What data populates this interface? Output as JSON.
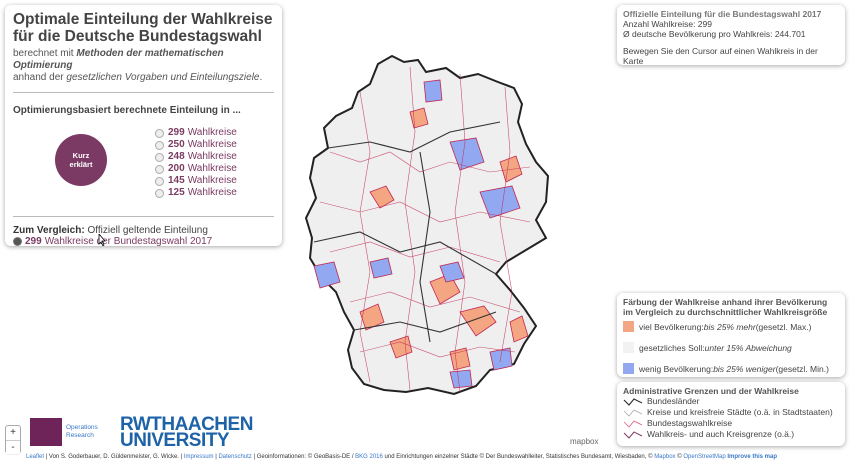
{
  "left_panel": {
    "title_line1": "Optimale Einteilung der Wahlkreise",
    "title_line2": "für die Deutsche Bundestagswahl",
    "subtitle_pre": "berechnet mit ",
    "subtitle_bold": "Methoden der mathematischen Optimierung",
    "subtitle_mid": "anhand der ",
    "subtitle_ital": "gesetzlichen Vorgaben und Einteilungsziele",
    "subtitle_end": ".",
    "section_heading": "Optimierungsbasiert berechnete Einteilung in ...",
    "circle_line1": "Kurz",
    "circle_line2": "erklärt",
    "options": [
      {
        "num": "299",
        "label": "Wahlkreise"
      },
      {
        "num": "250",
        "label": "Wahlkreise"
      },
      {
        "num": "248",
        "label": "Wahlkreise"
      },
      {
        "num": "200",
        "label": "Wahlkreise"
      },
      {
        "num": "145",
        "label": "Wahlkreise"
      },
      {
        "num": "125",
        "label": "Wahlkreise"
      }
    ],
    "compare_bold": "Zum Vergleich:",
    "compare_text": " Offiziell geltende Einteilung",
    "compare_num": "299",
    "compare_label": "Wahlkreise der Bundestagswahl 2017"
  },
  "info_box": {
    "heading": "Offizielle Einteilung für die Bundestagswahl 2017",
    "line1": "Anzahl Wahlkreise: 299",
    "line2": "Ø deutsche Bevölkerung pro Wahlkreis: 244.701",
    "hint": "Bewegen Sie den Cursor auf einen Wahlkreis in der Karte"
  },
  "legend": {
    "heading1": "Färbung der Wahlkreise anhand ihrer Bevölkerung",
    "heading2": "im Vergleich zu durchschnittlicher Wahlkreisgröße",
    "rows": [
      {
        "pre": "viel Bevölkerung: ",
        "ital": "bis 25% mehr",
        "post": " (gesetzl. Max.)",
        "color": "#f4a582"
      },
      {
        "pre": "gesetzliches Soll: ",
        "ital": "unter 15% Abweichung",
        "post": "",
        "color": "#f2f2f2"
      },
      {
        "pre": "wenig Bevölkerung: ",
        "ital": "bis 25% weniger",
        "post": " (gesetzl. Min.)",
        "color": "#92a8f0"
      }
    ]
  },
  "admin": {
    "heading": "Administrative Grenzen und der Wahlkreise",
    "rows": [
      "Bundesländer",
      "Kreise und kreisfreie Städte (o.ä. in Stadtstaaten)",
      "Bundestagswahlkreise",
      "Wahlkreis- und auch Kreisgrenze (o.ä.)"
    ]
  },
  "zoom": {
    "plus": "+",
    "minus": "-"
  },
  "logos": {
    "or_line1": "Operations",
    "or_line2": "Research",
    "rwth_line1": "RWTHAACHEN",
    "rwth_line2": "UNIVERSITY"
  },
  "mapbox_label": "mapbox",
  "attribution": {
    "leaflet": "Leaflet",
    "text1": " | Von S. Goderbauer, D. Güldenmeister, G. Wicke. | ",
    "impressum": "Impressum",
    "sep": " | ",
    "datenschutz": "Datenschutz",
    "text2": " | Geoinformationen: © GeoBasis-DE / ",
    "bkg": "BKG 2016",
    "text3": " und Einrichtungen einzelner Städte © Der Bundeswahlleiter, Statistisches Bundesamt, Wiesbaden, © ",
    "mapbox": "Mapbox",
    "text4": " © ",
    "osm": "OpenStreetMap",
    "improve": " Improve this map"
  }
}
